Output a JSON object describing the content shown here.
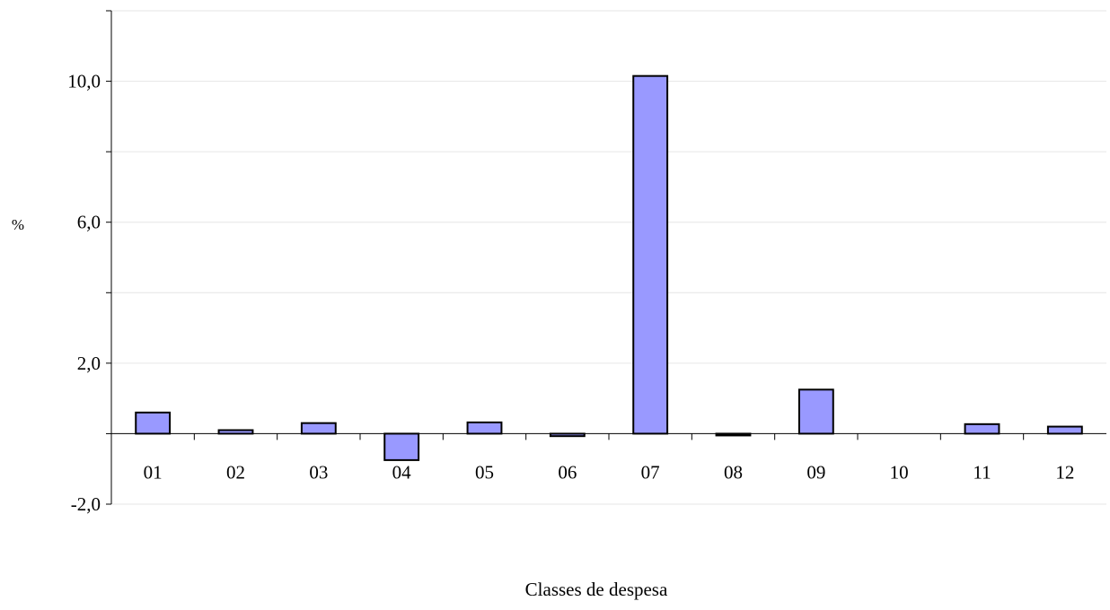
{
  "chart_data": {
    "type": "bar",
    "xlabel": "Classes de despesa",
    "ylabel": "%",
    "categories": [
      "01",
      "02",
      "03",
      "04",
      "05",
      "06",
      "07",
      "08",
      "09",
      "10",
      "11",
      "12"
    ],
    "values": [
      0.6,
      0.1,
      0.3,
      -0.75,
      0.32,
      -0.07,
      10.15,
      -0.03,
      1.25,
      0.0,
      0.27,
      0.2
    ],
    "ylim": [
      -2.0,
      12.0
    ],
    "yticks": [
      -2.0,
      2.0,
      6.0,
      10.0
    ],
    "ytick_labels": [
      "-2,0",
      "2,0",
      "6,0",
      "10,0"
    ],
    "grid": true,
    "bar_color": "#9999ff",
    "bar_edge_color": "#000000",
    "grid_color": "#e6e6e6",
    "legend": "none"
  }
}
